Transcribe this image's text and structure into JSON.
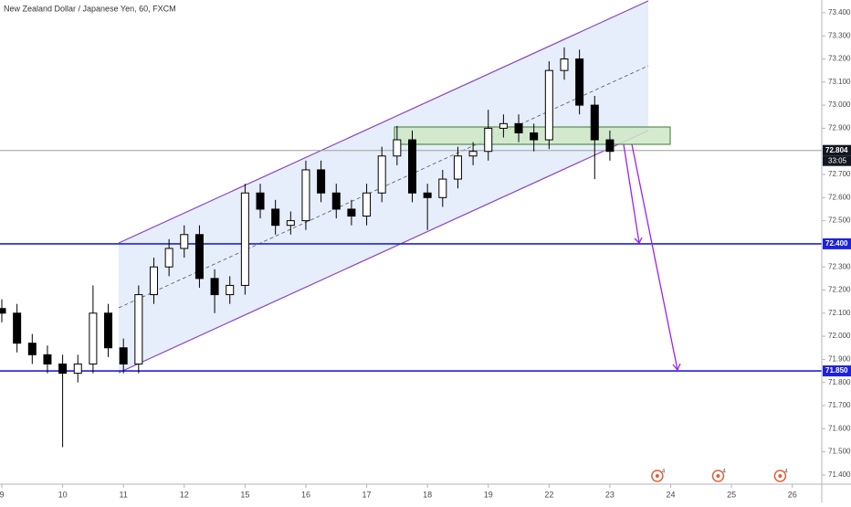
{
  "chart_data": {
    "type": "candlestick",
    "title": "New Zealand Dollar / Japanese Yen, 60, FXCM",
    "up_color": "#ffffff",
    "down_color": "#000000",
    "x": [
      0,
      0.25,
      0.5,
      0.75,
      1,
      1.25,
      1.5,
      1.75,
      2,
      2.25,
      2.5,
      2.75,
      3,
      3.25,
      3.5,
      3.75,
      4,
      4.25,
      4.5,
      4.75,
      5,
      5.25,
      5.5,
      5.75,
      6,
      6.25,
      6.5,
      6.75,
      7,
      7.25,
      7.5,
      7.75,
      8,
      8.25,
      8.5,
      8.75,
      9,
      9.25,
      9.5,
      9.75,
      10
    ],
    "open": [
      72.12,
      72.1,
      71.97,
      71.92,
      71.88,
      71.84,
      71.88,
      72.1,
      71.95,
      71.88,
      72.18,
      72.3,
      72.38,
      72.44,
      72.25,
      72.18,
      72.22,
      72.62,
      72.55,
      72.48,
      72.5,
      72.72,
      72.62,
      72.55,
      72.52,
      72.62,
      72.78,
      72.85,
      72.62,
      72.6,
      72.68,
      72.78,
      72.8,
      72.9,
      72.92,
      72.88,
      72.85,
      73.15,
      73.2,
      73.0,
      72.85
    ],
    "high": [
      72.16,
      72.14,
      72.01,
      71.96,
      71.92,
      71.92,
      72.22,
      72.14,
      71.99,
      72.22,
      72.34,
      72.42,
      72.48,
      72.48,
      72.29,
      72.26,
      72.66,
      72.66,
      72.59,
      72.54,
      72.76,
      72.76,
      72.66,
      72.59,
      72.66,
      72.82,
      72.91,
      72.89,
      72.66,
      72.72,
      72.82,
      72.84,
      72.98,
      72.96,
      72.96,
      72.92,
      73.19,
      73.25,
      73.24,
      73.04,
      72.89
    ],
    "low": [
      72.06,
      71.93,
      71.88,
      71.84,
      71.52,
      71.8,
      71.84,
      71.91,
      71.84,
      71.84,
      72.14,
      72.26,
      72.34,
      72.21,
      72.1,
      72.14,
      72.18,
      72.51,
      72.44,
      72.44,
      72.46,
      72.58,
      72.51,
      72.48,
      72.48,
      72.58,
      72.74,
      72.58,
      72.46,
      72.56,
      72.64,
      72.74,
      72.76,
      72.86,
      72.84,
      72.8,
      72.81,
      73.11,
      72.96,
      72.68,
      72.76
    ],
    "close": [
      72.1,
      71.97,
      71.92,
      71.88,
      71.84,
      71.88,
      72.1,
      71.95,
      71.88,
      72.18,
      72.3,
      72.38,
      72.44,
      72.25,
      72.18,
      72.22,
      72.62,
      72.55,
      72.48,
      72.5,
      72.72,
      72.62,
      72.55,
      72.52,
      72.62,
      72.78,
      72.85,
      72.62,
      72.6,
      72.68,
      72.78,
      72.8,
      72.9,
      72.92,
      72.88,
      72.85,
      73.15,
      73.2,
      73.0,
      72.85,
      72.8
    ],
    "xlim": [
      0,
      13.5
    ],
    "xticks": [
      {
        "value": 0,
        "label": "9"
      },
      {
        "value": 1,
        "label": "10"
      },
      {
        "value": 2,
        "label": "11"
      },
      {
        "value": 3,
        "label": "12"
      },
      {
        "value": 4,
        "label": "15"
      },
      {
        "value": 5,
        "label": "16"
      },
      {
        "value": 6,
        "label": "17"
      },
      {
        "value": 7,
        "label": "18"
      },
      {
        "value": 8,
        "label": "19"
      },
      {
        "value": 9,
        "label": "22"
      },
      {
        "value": 10,
        "label": "23"
      },
      {
        "value": 11,
        "label": "24"
      },
      {
        "value": 12,
        "label": "25"
      },
      {
        "value": 13,
        "label": "26"
      }
    ],
    "ylim": [
      71.36,
      73.455
    ],
    "yticks": [
      {
        "value": 73.4,
        "label": "73.400"
      },
      {
        "value": 73.3,
        "label": "73.300"
      },
      {
        "value": 73.2,
        "label": "73.200"
      },
      {
        "value": 73.1,
        "label": "73.100"
      },
      {
        "value": 73.0,
        "label": "73.000"
      },
      {
        "value": 72.9,
        "label": "72.900"
      },
      {
        "value": 72.7,
        "label": "72.700"
      },
      {
        "value": 72.6,
        "label": "72.600"
      },
      {
        "value": 72.5,
        "label": "72.500"
      },
      {
        "value": 72.3,
        "label": "72.300"
      },
      {
        "value": 72.2,
        "label": "72.200"
      },
      {
        "value": 72.1,
        "label": "72.100"
      },
      {
        "value": 72.0,
        "label": "72.000"
      },
      {
        "value": 71.9,
        "label": "71.900"
      },
      {
        "value": 71.8,
        "label": "71.800"
      },
      {
        "value": 71.7,
        "label": "71.700"
      },
      {
        "value": 71.6,
        "label": "71.600"
      },
      {
        "value": 71.5,
        "label": "71.500"
      },
      {
        "value": 71.4,
        "label": "71.400"
      }
    ],
    "levels": [
      {
        "value": 72.804,
        "label": "72.804",
        "color": "#131722",
        "line_color": "#9e9e9e"
      },
      {
        "value": 72.4,
        "label": "72.400",
        "color": "#1e22d8",
        "line_color": "#1e22d8"
      },
      {
        "value": 71.85,
        "label": "71.850",
        "color": "#1e22d8",
        "line_color": "#1e22d8"
      }
    ],
    "countdown": "33:05",
    "events": [
      {
        "x": 10.78,
        "label": "4"
      },
      {
        "x": 11.78,
        "label": "4"
      },
      {
        "x": 12.8,
        "label": "4"
      }
    ]
  }
}
